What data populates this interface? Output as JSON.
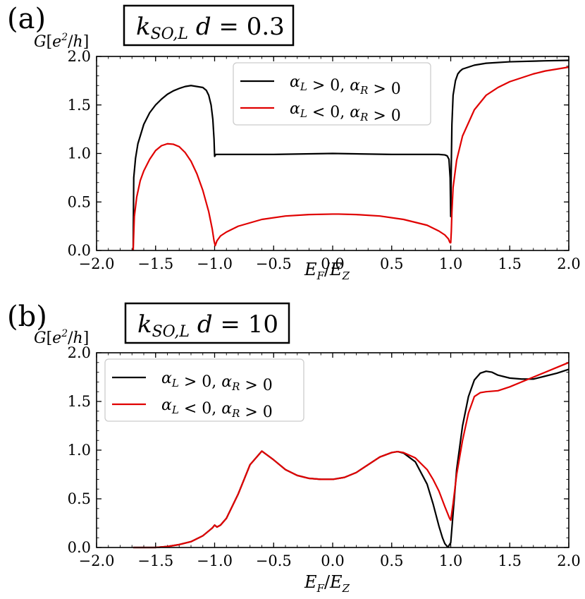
{
  "chart_data": [
    {
      "panel": "(a)",
      "type": "line",
      "annotation": "k_{SO,L} d = 0.3",
      "xlabel": "E_F/E_Z",
      "ylabel": "G[e^2/h]",
      "xlim": [
        -2.0,
        2.0
      ],
      "ylim": [
        0.0,
        2.0
      ],
      "xticks": [
        "−2.0",
        "−1.5",
        "−1.0",
        "−0.5",
        "0.0",
        "0.5",
        "1.0",
        "1.5",
        "2.0"
      ],
      "yticks": [
        "0.0",
        "0.5",
        "1.0",
        "1.5",
        "2.0"
      ],
      "legend_position": "top-right",
      "series": [
        {
          "name": "α_L > 0,   α_R > 0",
          "color": "#000000",
          "x": [
            -1.69,
            -1.685,
            -1.67,
            -1.65,
            -1.6,
            -1.55,
            -1.5,
            -1.45,
            -1.4,
            -1.35,
            -1.3,
            -1.25,
            -1.2,
            -1.15,
            -1.1,
            -1.07,
            -1.05,
            -1.03,
            -1.015,
            -1.005,
            -1.0,
            -0.99,
            -0.9,
            -0.5,
            0.0,
            0.5,
            0.9,
            0.95,
            0.97,
            0.985,
            0.995,
            1.0,
            1.005,
            1.01,
            1.02,
            1.04,
            1.06,
            1.08,
            1.1,
            1.2,
            1.3,
            1.5,
            1.8,
            2.0
          ],
          "y": [
            0.0,
            0.75,
            0.95,
            1.1,
            1.3,
            1.42,
            1.5,
            1.56,
            1.61,
            1.645,
            1.67,
            1.69,
            1.7,
            1.69,
            1.68,
            1.65,
            1.6,
            1.5,
            1.35,
            1.15,
            0.97,
            0.99,
            0.99,
            0.99,
            1.0,
            0.99,
            0.99,
            0.985,
            0.975,
            0.94,
            0.75,
            0.35,
            0.9,
            1.3,
            1.6,
            1.75,
            1.82,
            1.85,
            1.87,
            1.91,
            1.93,
            1.945,
            1.955,
            1.96
          ]
        },
        {
          "name": "α_L < 0,   α_R > 0",
          "color": "#e00000",
          "x": [
            -1.69,
            -1.68,
            -1.66,
            -1.63,
            -1.6,
            -1.55,
            -1.5,
            -1.45,
            -1.4,
            -1.35,
            -1.3,
            -1.25,
            -1.2,
            -1.15,
            -1.1,
            -1.05,
            -1.02,
            -1.005,
            -0.995,
            -0.98,
            -0.95,
            -0.9,
            -0.8,
            -0.6,
            -0.4,
            -0.2,
            0.0,
            0.05,
            0.2,
            0.4,
            0.6,
            0.8,
            0.9,
            0.95,
            0.98,
            0.99,
            0.995,
            1.0,
            1.005,
            1.01,
            1.02,
            1.05,
            1.1,
            1.2,
            1.3,
            1.4,
            1.5,
            1.6,
            1.7,
            1.8,
            1.9,
            2.0
          ],
          "y": [
            0.0,
            0.35,
            0.55,
            0.72,
            0.82,
            0.94,
            1.03,
            1.08,
            1.1,
            1.095,
            1.07,
            1.01,
            0.92,
            0.79,
            0.62,
            0.4,
            0.22,
            0.1,
            0.05,
            0.1,
            0.15,
            0.19,
            0.25,
            0.32,
            0.355,
            0.37,
            0.375,
            0.375,
            0.37,
            0.355,
            0.32,
            0.26,
            0.2,
            0.16,
            0.12,
            0.09,
            0.08,
            0.08,
            0.2,
            0.4,
            0.65,
            0.93,
            1.18,
            1.45,
            1.6,
            1.68,
            1.74,
            1.78,
            1.82,
            1.85,
            1.87,
            1.89
          ]
        }
      ]
    },
    {
      "panel": "(b)",
      "type": "line",
      "annotation": "k_{SO,L} d = 10",
      "xlabel": "E_F/E_Z",
      "ylabel": "G[e^2/h]",
      "xlim": [
        -2.0,
        2.0
      ],
      "ylim": [
        0.0,
        2.0
      ],
      "xticks": [
        "−2.0",
        "−1.5",
        "−1.0",
        "−0.5",
        "0.0",
        "0.5",
        "1.0",
        "1.5",
        "2.0"
      ],
      "yticks": [
        "0.0",
        "0.5",
        "1.0",
        "1.5",
        "2.0"
      ],
      "legend_position": "top-left",
      "series": [
        {
          "name": "α_L > 0,   α_R > 0",
          "color": "#000000",
          "x": [
            -1.69,
            -1.5,
            -1.4,
            -1.3,
            -1.2,
            -1.1,
            -1.05,
            -1.02,
            -1.0,
            -0.98,
            -0.95,
            -0.9,
            -0.8,
            -0.7,
            -0.6,
            -0.5,
            -0.4,
            -0.3,
            -0.2,
            -0.1,
            0.0,
            0.1,
            0.2,
            0.3,
            0.4,
            0.5,
            0.55,
            0.6,
            0.7,
            0.8,
            0.85,
            0.9,
            0.93,
            0.95,
            0.97,
            0.98,
            1.0,
            1.02,
            1.05,
            1.1,
            1.15,
            1.2,
            1.25,
            1.3,
            1.35,
            1.4,
            1.5,
            1.6,
            1.7,
            1.8,
            1.9,
            2.0
          ],
          "y": [
            0.0,
            0.0,
            0.01,
            0.03,
            0.06,
            0.12,
            0.17,
            0.2,
            0.23,
            0.21,
            0.23,
            0.3,
            0.55,
            0.85,
            0.99,
            0.9,
            0.8,
            0.74,
            0.71,
            0.7,
            0.7,
            0.72,
            0.77,
            0.85,
            0.93,
            0.975,
            0.985,
            0.97,
            0.88,
            0.65,
            0.45,
            0.22,
            0.1,
            0.04,
            0.01,
            0.01,
            0.05,
            0.35,
            0.8,
            1.25,
            1.55,
            1.72,
            1.79,
            1.81,
            1.8,
            1.77,
            1.74,
            1.73,
            1.73,
            1.76,
            1.79,
            1.83
          ]
        },
        {
          "name": "α_L < 0,   α_R > 0",
          "color": "#e00000",
          "x": [
            -1.69,
            -1.5,
            -1.4,
            -1.3,
            -1.2,
            -1.1,
            -1.05,
            -1.02,
            -1.0,
            -0.98,
            -0.95,
            -0.9,
            -0.8,
            -0.7,
            -0.6,
            -0.5,
            -0.4,
            -0.3,
            -0.2,
            -0.1,
            0.0,
            0.1,
            0.2,
            0.3,
            0.4,
            0.5,
            0.55,
            0.6,
            0.7,
            0.8,
            0.85,
            0.9,
            0.95,
            0.99,
            1.0,
            1.02,
            1.05,
            1.1,
            1.15,
            1.2,
            1.25,
            1.3,
            1.4,
            1.5,
            1.6,
            1.7,
            1.8,
            1.9,
            2.0
          ],
          "y": [
            0.0,
            0.0,
            0.01,
            0.03,
            0.06,
            0.12,
            0.17,
            0.2,
            0.23,
            0.21,
            0.23,
            0.3,
            0.55,
            0.85,
            0.99,
            0.9,
            0.8,
            0.74,
            0.71,
            0.7,
            0.7,
            0.72,
            0.77,
            0.85,
            0.93,
            0.975,
            0.985,
            0.975,
            0.92,
            0.8,
            0.7,
            0.58,
            0.42,
            0.3,
            0.28,
            0.45,
            0.75,
            1.1,
            1.38,
            1.55,
            1.59,
            1.6,
            1.61,
            1.65,
            1.7,
            1.75,
            1.8,
            1.85,
            1.9
          ]
        }
      ]
    }
  ]
}
